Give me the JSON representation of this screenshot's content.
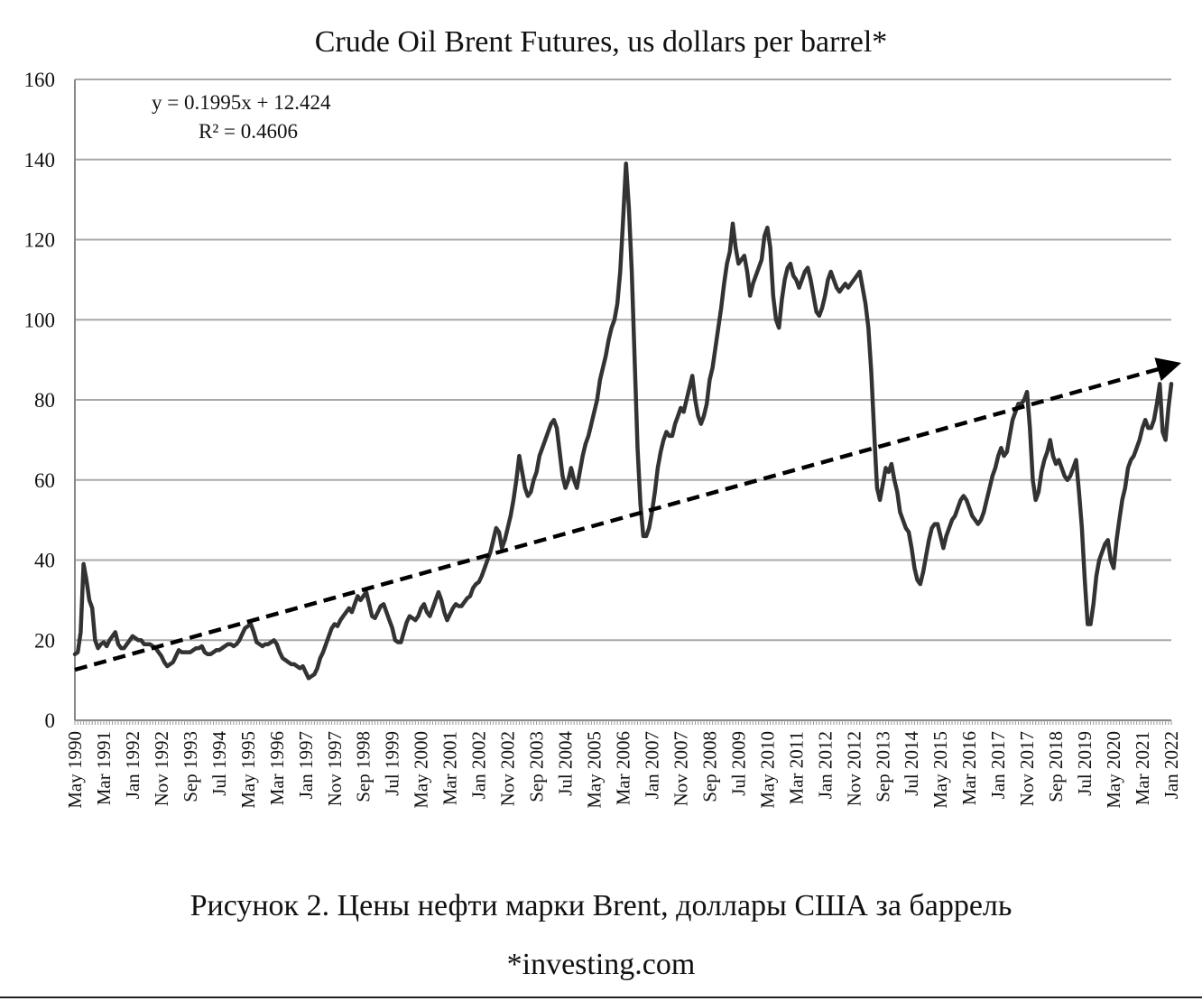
{
  "title": "Crude Oil Brent Futures, us dollars per barrel*",
  "caption": "Рисунок 2. Цены нефти марки Brent, доллары США за баррель",
  "source": "*investing.com",
  "trendline": {
    "equation": "y = 0.1995x + 12.424",
    "r2": "R² = 0.4606",
    "slope": 0.1995,
    "intercept": 12.424,
    "color": "#000000"
  },
  "chart_data": {
    "type": "line",
    "x_start": "May 1990",
    "x_end": "Jan 2022",
    "xlabel": "",
    "ylabel": "",
    "ylim": [
      0,
      160
    ],
    "yticks": [
      0,
      20,
      40,
      60,
      80,
      100,
      120,
      140,
      160
    ],
    "xtick_labels": [
      "May 1990",
      "Mar 1991",
      "Jan 1992",
      "Nov 1992",
      "Sep 1993",
      "Jul 1994",
      "May 1995",
      "Mar 1996",
      "Jan 1997",
      "Nov 1997",
      "Sep 1998",
      "Jul 1999",
      "May 2000",
      "Mar 2001",
      "Jan 2002",
      "Nov 2002",
      "Sep 2003",
      "Jul 2004",
      "May 2005",
      "Mar 2006",
      "Jan 2007",
      "Nov 2007",
      "Sep 2008",
      "Jul 2009",
      "May 2010",
      "Mar 2011",
      "Jan 2012",
      "Nov 2012",
      "Sep 2013",
      "Jul 2014",
      "May 2015",
      "Mar 2016",
      "Jan 2017",
      "Nov 2017",
      "Sep 2018",
      "Jul 2019",
      "May 2020",
      "Mar 2021",
      "Jan 2022"
    ],
    "grid": true,
    "line_color": "#333333",
    "series": [
      {
        "values": [
          16.5,
          17,
          22,
          39,
          35,
          30,
          28,
          20,
          18,
          19,
          19.5,
          18.5,
          20,
          21,
          22,
          19,
          18,
          18,
          19,
          20,
          21,
          20.5,
          20,
          20,
          19,
          19,
          19,
          18.5,
          18,
          17,
          16,
          14.5,
          13.5,
          14,
          14.5,
          16,
          17.5,
          17,
          17,
          17,
          17,
          17.5,
          18,
          18,
          18.5,
          17,
          16.5,
          16.5,
          17,
          17.5,
          17.5,
          18,
          18.5,
          19,
          19,
          18.5,
          19,
          20,
          21.5,
          23,
          23.5,
          24,
          22,
          19.5,
          19,
          18.5,
          19,
          19,
          19.5,
          20,
          19,
          17,
          15.5,
          15,
          14.5,
          14,
          14,
          13.5,
          13,
          13.5,
          12,
          10.5,
          11,
          11.5,
          13,
          15.5,
          17,
          19,
          21,
          23,
          24,
          23.5,
          25,
          26,
          27,
          28,
          27,
          29,
          31,
          30,
          31,
          32,
          29,
          26,
          25.5,
          27,
          28.5,
          29,
          27,
          25,
          23,
          20,
          19.5,
          19.5,
          22,
          24.5,
          26,
          25.5,
          25,
          26,
          28,
          29,
          27,
          26,
          28,
          30,
          32,
          30,
          27,
          25,
          26.5,
          28,
          29,
          28.5,
          28.5,
          29.5,
          30.5,
          31,
          33,
          34,
          34.5,
          36,
          38,
          40,
          42,
          45,
          48,
          47,
          43,
          45,
          48,
          51,
          55,
          60,
          66,
          62,
          58,
          56,
          57,
          60,
          62,
          66,
          68,
          70,
          72,
          74,
          75,
          73,
          67,
          61,
          58,
          60,
          63,
          60,
          58,
          62,
          66,
          69,
          71,
          74,
          77,
          80,
          85,
          88,
          91,
          95,
          98,
          100,
          104,
          112,
          125,
          139,
          128,
          112,
          90,
          68,
          54,
          46,
          46,
          48,
          52,
          57,
          63,
          67,
          70,
          72,
          71,
          71,
          74,
          76,
          78,
          77,
          80,
          83,
          86,
          80,
          76,
          74,
          76,
          79,
          85,
          88,
          93,
          98,
          103,
          109,
          114,
          117,
          124,
          118,
          114,
          115,
          116,
          112,
          106,
          109,
          111,
          113,
          115,
          121,
          123,
          118,
          106,
          100,
          98,
          105,
          110,
          113,
          114,
          111,
          110,
          108,
          110,
          112,
          113,
          110,
          106,
          102,
          101,
          103,
          106,
          110,
          112,
          110,
          108,
          107,
          108,
          109,
          108,
          109,
          110,
          111,
          112,
          108,
          104,
          98,
          87,
          72,
          58,
          55,
          59,
          63,
          62,
          64,
          60,
          57,
          52,
          50,
          48,
          47,
          43,
          38,
          35,
          34,
          37,
          41,
          45,
          48,
          49,
          49,
          46,
          43,
          46,
          48,
          50,
          51,
          53,
          55,
          56,
          55,
          53,
          51,
          50,
          49,
          50,
          52,
          55,
          58,
          61,
          63,
          66,
          68,
          66,
          67,
          71,
          75,
          77,
          79,
          79,
          80,
          82,
          73,
          60,
          55,
          57,
          62,
          65,
          67,
          70,
          66,
          64,
          65,
          63,
          61,
          60,
          61,
          63,
          65,
          57,
          48,
          35,
          24,
          24,
          29,
          36,
          40,
          42,
          44,
          45,
          40,
          38,
          45,
          50,
          55,
          58,
          63,
          65,
          66,
          68,
          70,
          73,
          75,
          73,
          73,
          75,
          79,
          84,
          72,
          70,
          78,
          84
        ]
      }
    ]
  }
}
